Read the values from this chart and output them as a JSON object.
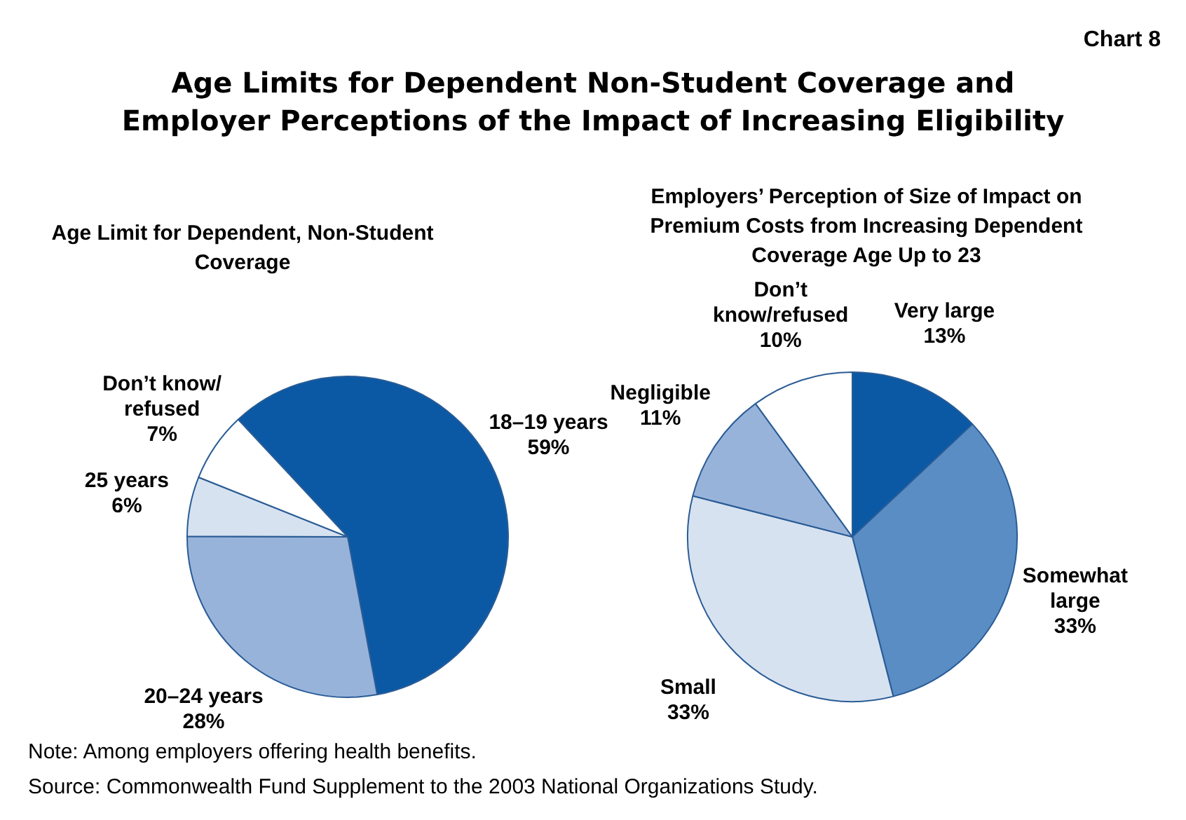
{
  "chart_data": [
    {
      "type": "pie",
      "title": "Age Limits for Dependent Non-Student Coverage and Employer Perceptions of the Impact of Increasing Eligibility",
      "subtitle": "Age Limit for Dependent, Non-Student Coverage",
      "categories": [
        "18–19 years",
        "20–24 years",
        "25 years",
        "Don’t know/ refused"
      ],
      "values": [
        59,
        28,
        6,
        7
      ],
      "value_labels": [
        "59%",
        "28%",
        "6%",
        "7%"
      ],
      "colors": [
        "#0b59a4",
        "#98b3da",
        "#d7e2f0",
        "#ffffff"
      ],
      "legend": false,
      "annotations": [
        "Chart 8",
        "Note: Among employers offering health benefits.",
        "Source: Commonwealth Fund Supplement to the 2003 National Organizations Study."
      ]
    },
    {
      "type": "pie",
      "title": "Employers’ Perception of Size of Impact on Premium Costs from Increasing Dependent Coverage Age Up to 23",
      "categories": [
        "Very large",
        "Somewhat large",
        "Small",
        "Negligible",
        "Don’t know/refused"
      ],
      "values": [
        13,
        33,
        33,
        11,
        10
      ],
      "value_labels": [
        "13%",
        "33%",
        "33%",
        "11%",
        "10%"
      ],
      "colors": [
        "#0b59a4",
        "#5b8dc5",
        "#d7e2f0",
        "#98b3da",
        "#ffffff"
      ],
      "legend": false
    }
  ]
}
